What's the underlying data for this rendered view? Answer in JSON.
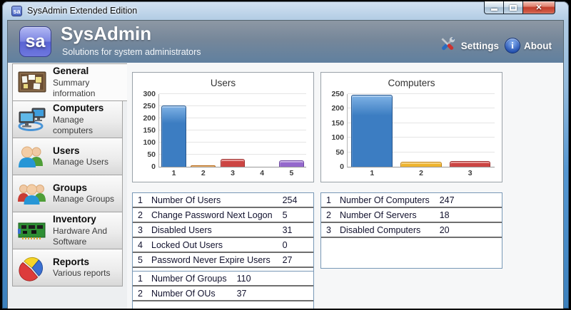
{
  "window": {
    "title": "SysAdmin Extended Edition",
    "icon_text": "sa",
    "controls": {
      "minimize": "minimize",
      "maximize": "maximize",
      "close": "close"
    }
  },
  "header": {
    "logo_text": "sa",
    "title": "SysAdmin",
    "subtitle": "Solutions for system administrators",
    "settings_label": "Settings",
    "about_label": "About",
    "info_glyph": "i"
  },
  "sidebar": {
    "items": [
      {
        "label": "General",
        "sublabel": "Summary information",
        "icon": "bulletin-board-icon",
        "selected": true
      },
      {
        "label": "Computers",
        "sublabel": "Manage computers",
        "icon": "computers-icon",
        "selected": false
      },
      {
        "label": "Users",
        "sublabel": "Manage Users",
        "icon": "users-icon",
        "selected": false
      },
      {
        "label": "Groups",
        "sublabel": "Manage Groups",
        "icon": "groups-icon",
        "selected": false
      },
      {
        "label": "Inventory",
        "sublabel": "Hardware And Software",
        "icon": "circuit-board-icon",
        "selected": false
      },
      {
        "label": "Reports",
        "sublabel": "Various reports",
        "icon": "pie-chart-icon",
        "selected": false
      }
    ]
  },
  "chart_data": [
    {
      "type": "bar",
      "title": "Users",
      "categories": [
        "1",
        "2",
        "3",
        "4",
        "5"
      ],
      "values": [
        254,
        5,
        31,
        0,
        27
      ],
      "ylim": [
        0,
        300
      ],
      "yticks": [
        0,
        50,
        100,
        150,
        200,
        250,
        300
      ],
      "grid": true,
      "colors": [
        {
          "light": "#7fb2e5",
          "base": "#3c7dc2",
          "dark": "#2a598f"
        },
        {
          "light": "#f5b35c",
          "base": "#e8912c",
          "dark": "#b5691a"
        },
        {
          "light": "#e57f7c",
          "base": "#cc4543",
          "dark": "#9e2f2e"
        },
        {
          "light": "#cccccc",
          "base": "#aaaaaa",
          "dark": "#888888"
        },
        {
          "light": "#c0a0e8",
          "base": "#9468cc",
          "dark": "#6d47a0"
        }
      ]
    },
    {
      "type": "bar",
      "title": "Computers",
      "categories": [
        "1",
        "2",
        "3"
      ],
      "values": [
        247,
        18,
        20
      ],
      "ylim": [
        0,
        250
      ],
      "yticks": [
        0,
        50,
        100,
        150,
        200,
        250
      ],
      "grid": true,
      "colors": [
        {
          "light": "#7fb2e5",
          "base": "#3c7dc2",
          "dark": "#2a598f"
        },
        {
          "light": "#f8d06a",
          "base": "#eeb42f",
          "dark": "#c28417"
        },
        {
          "light": "#e57f7c",
          "base": "#cc4543",
          "dark": "#9e2f2e"
        }
      ]
    }
  ],
  "tables": {
    "users": {
      "rows": [
        [
          "1",
          "Number Of Users",
          "254"
        ],
        [
          "2",
          "Change Password Next Logon",
          "5"
        ],
        [
          "3",
          "Disabled Users",
          "31"
        ],
        [
          "4",
          "Locked Out Users",
          "0"
        ],
        [
          "5",
          "Password Never Expire Users",
          "27"
        ]
      ],
      "empty_height": 5
    },
    "computers": {
      "rows": [
        [
          "1",
          "Number Of Computers",
          "247"
        ],
        [
          "2",
          "Number Of Servers",
          "18"
        ],
        [
          "3",
          "Disabled Computers",
          "20"
        ]
      ],
      "empty_height": 42
    },
    "groups": {
      "rows": [
        [
          "1",
          "Number Of Groups",
          "110"
        ],
        [
          "2",
          "Number Of OUs",
          "37"
        ]
      ],
      "empty_height": 12
    }
  }
}
